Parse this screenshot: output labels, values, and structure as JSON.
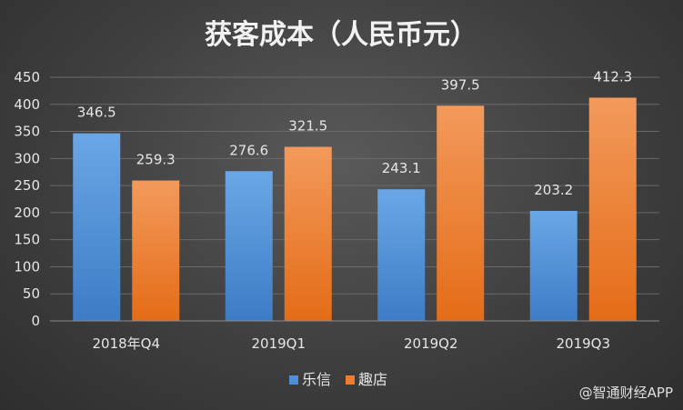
{
  "chart_data": {
    "type": "bar",
    "title": "获客成本（人民币元）",
    "categories": [
      "2018年Q4",
      "2019Q1",
      "2019Q2",
      "2019Q3"
    ],
    "series": [
      {
        "name": "乐信",
        "values": [
          346.5,
          276.6,
          243.1,
          203.2
        ],
        "color": "#4f8fd6"
      },
      {
        "name": "趣店",
        "values": [
          259.3,
          321.5,
          397.5,
          412.3
        ],
        "color": "#ef7d31"
      }
    ],
    "yticks": [
      0,
      50,
      100,
      150,
      200,
      250,
      300,
      350,
      400,
      450
    ],
    "ylim": [
      0,
      450
    ],
    "xlabel": "",
    "ylabel": "",
    "grid": true,
    "legend": "bottom-center",
    "data_labels": true
  },
  "watermark": "@智通财经APP"
}
